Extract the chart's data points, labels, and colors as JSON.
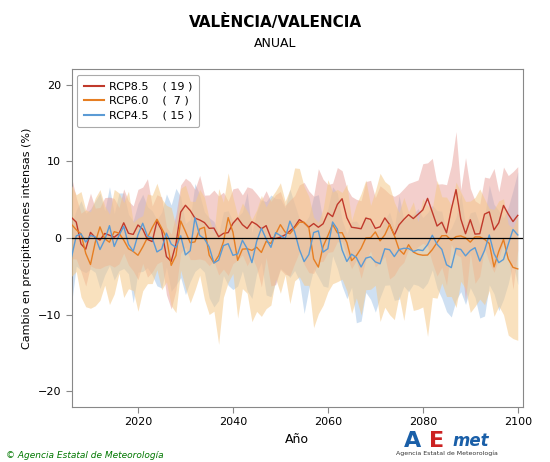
{
  "title": "VALÈNCIA/VALENCIA",
  "subtitle": "ANUAL",
  "xlabel": "Año",
  "ylabel": "Cambio en precipitaciones intensas (%)",
  "xlim": [
    2006,
    2101
  ],
  "ylim": [
    -22,
    22
  ],
  "yticks": [
    -20,
    -10,
    0,
    10,
    20
  ],
  "xticks": [
    2020,
    2040,
    2060,
    2080,
    2100
  ],
  "legend_entries": [
    {
      "label": "RCP8.5",
      "count": "( 19 )",
      "color": "#c0392b"
    },
    {
      "label": "RCP6.0",
      "count": "(  7 )",
      "color": "#e67e22"
    },
    {
      "label": "RCP4.5",
      "count": "( 15 )",
      "color": "#5b9bd5"
    }
  ],
  "bg_color": "#ffffff",
  "plot_bg": "#ffffff",
  "copyright": "© Agencia Estatal de Meteorología",
  "rcp85_color": "#c0392b",
  "rcp60_color": "#e67e22",
  "rcp45_color": "#5b9bd5",
  "rcp85_fill": "#e8a09a",
  "rcp60_fill": "#f5c98a",
  "rcp45_fill": "#a8c8e8",
  "seed": 42
}
